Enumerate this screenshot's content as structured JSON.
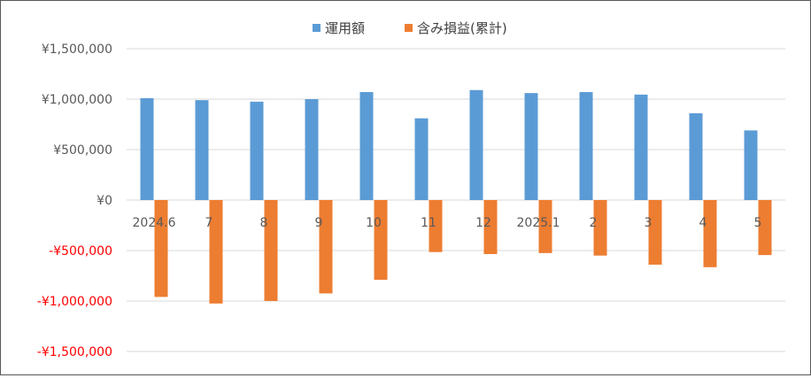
{
  "chart_data": {
    "type": "bar",
    "title": "",
    "xlabel": "",
    "ylabel": "",
    "categories": [
      "2024.6",
      "7",
      "8",
      "9",
      "10",
      "11",
      "12",
      "2025.1",
      "2",
      "3",
      "4",
      "5"
    ],
    "series": [
      {
        "name": "運用額",
        "color": "#5B9BD5",
        "values": [
          1010000,
          990000,
          975000,
          1000000,
          1070000,
          810000,
          1090000,
          1060000,
          1070000,
          1045000,
          860000,
          690000
        ]
      },
      {
        "name": "含み損益(累計)",
        "color": "#ED7D31",
        "values": [
          -960000,
          -1025000,
          -1000000,
          -925000,
          -790000,
          -515000,
          -535000,
          -525000,
          -550000,
          -640000,
          -665000,
          -545000
        ]
      }
    ],
    "ylim": [
      -1500000,
      1500000
    ],
    "yticks": [
      {
        "value": 1500000,
        "label": "¥1,500,000",
        "color": "#595959"
      },
      {
        "value": 1000000,
        "label": "¥1,000,000",
        "color": "#595959"
      },
      {
        "value": 500000,
        "label": "¥500,000",
        "color": "#595959"
      },
      {
        "value": 0,
        "label": "¥0",
        "color": "#595959"
      },
      {
        "value": -500000,
        "label": "-¥500,000",
        "color": "#FF0000"
      },
      {
        "value": -1000000,
        "label": "-¥1,000,000",
        "color": "#FF0000"
      },
      {
        "value": -1500000,
        "label": "-¥1,500,000",
        "color": "#FF0000"
      }
    ],
    "grid": true,
    "legend_position": "top"
  }
}
